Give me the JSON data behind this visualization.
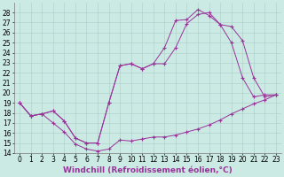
{
  "background_color": "#cceae4",
  "grid_color": "#aaccc8",
  "line_color": "#993399",
  "xlim": [
    -0.5,
    23.5
  ],
  "ylim": [
    14,
    29
  ],
  "xlabel": "Windchill (Refroidissement éolien,°C)",
  "xlabel_fontsize": 6.5,
  "xticks": [
    0,
    1,
    2,
    3,
    4,
    5,
    6,
    7,
    8,
    9,
    10,
    11,
    12,
    13,
    14,
    15,
    16,
    17,
    18,
    19,
    20,
    21,
    22,
    23
  ],
  "yticks": [
    14,
    15,
    16,
    17,
    18,
    19,
    20,
    21,
    22,
    23,
    24,
    25,
    26,
    27,
    28
  ],
  "tick_fontsize": 5.5,
  "line1_x": [
    0,
    1,
    2,
    3,
    4,
    5,
    6,
    7,
    8,
    9,
    10,
    11,
    12,
    13,
    14,
    15,
    16,
    17,
    18,
    19,
    20,
    21,
    22,
    23
  ],
  "line1_y": [
    19.0,
    17.7,
    17.9,
    17.0,
    16.1,
    14.9,
    14.4,
    14.2,
    14.4,
    15.3,
    15.2,
    15.4,
    15.6,
    15.6,
    15.8,
    16.1,
    16.4,
    16.8,
    17.3,
    17.9,
    18.4,
    18.9,
    19.3,
    19.8
  ],
  "line2_x": [
    0,
    1,
    2,
    3,
    4,
    5,
    6,
    7,
    8,
    9,
    10,
    11,
    12,
    13,
    14,
    15,
    16,
    17,
    18,
    19,
    20,
    21,
    22,
    23
  ],
  "line2_y": [
    19.0,
    17.7,
    17.9,
    18.2,
    17.2,
    15.5,
    15.0,
    15.0,
    19.0,
    22.7,
    22.9,
    22.4,
    22.9,
    22.9,
    24.5,
    26.9,
    27.8,
    28.0,
    26.8,
    25.0,
    21.5,
    19.6,
    19.8,
    19.8
  ],
  "line3_x": [
    0,
    1,
    2,
    3,
    4,
    5,
    6,
    7,
    8,
    9,
    10,
    11,
    12,
    13,
    14,
    15,
    16,
    17,
    18,
    19,
    20,
    21,
    22,
    23
  ],
  "line3_y": [
    19.0,
    17.7,
    17.9,
    18.2,
    17.2,
    15.5,
    15.0,
    15.0,
    19.0,
    22.7,
    22.9,
    22.4,
    22.9,
    24.5,
    27.2,
    27.3,
    28.3,
    27.7,
    26.8,
    26.6,
    25.2,
    21.5,
    19.6,
    19.8
  ]
}
